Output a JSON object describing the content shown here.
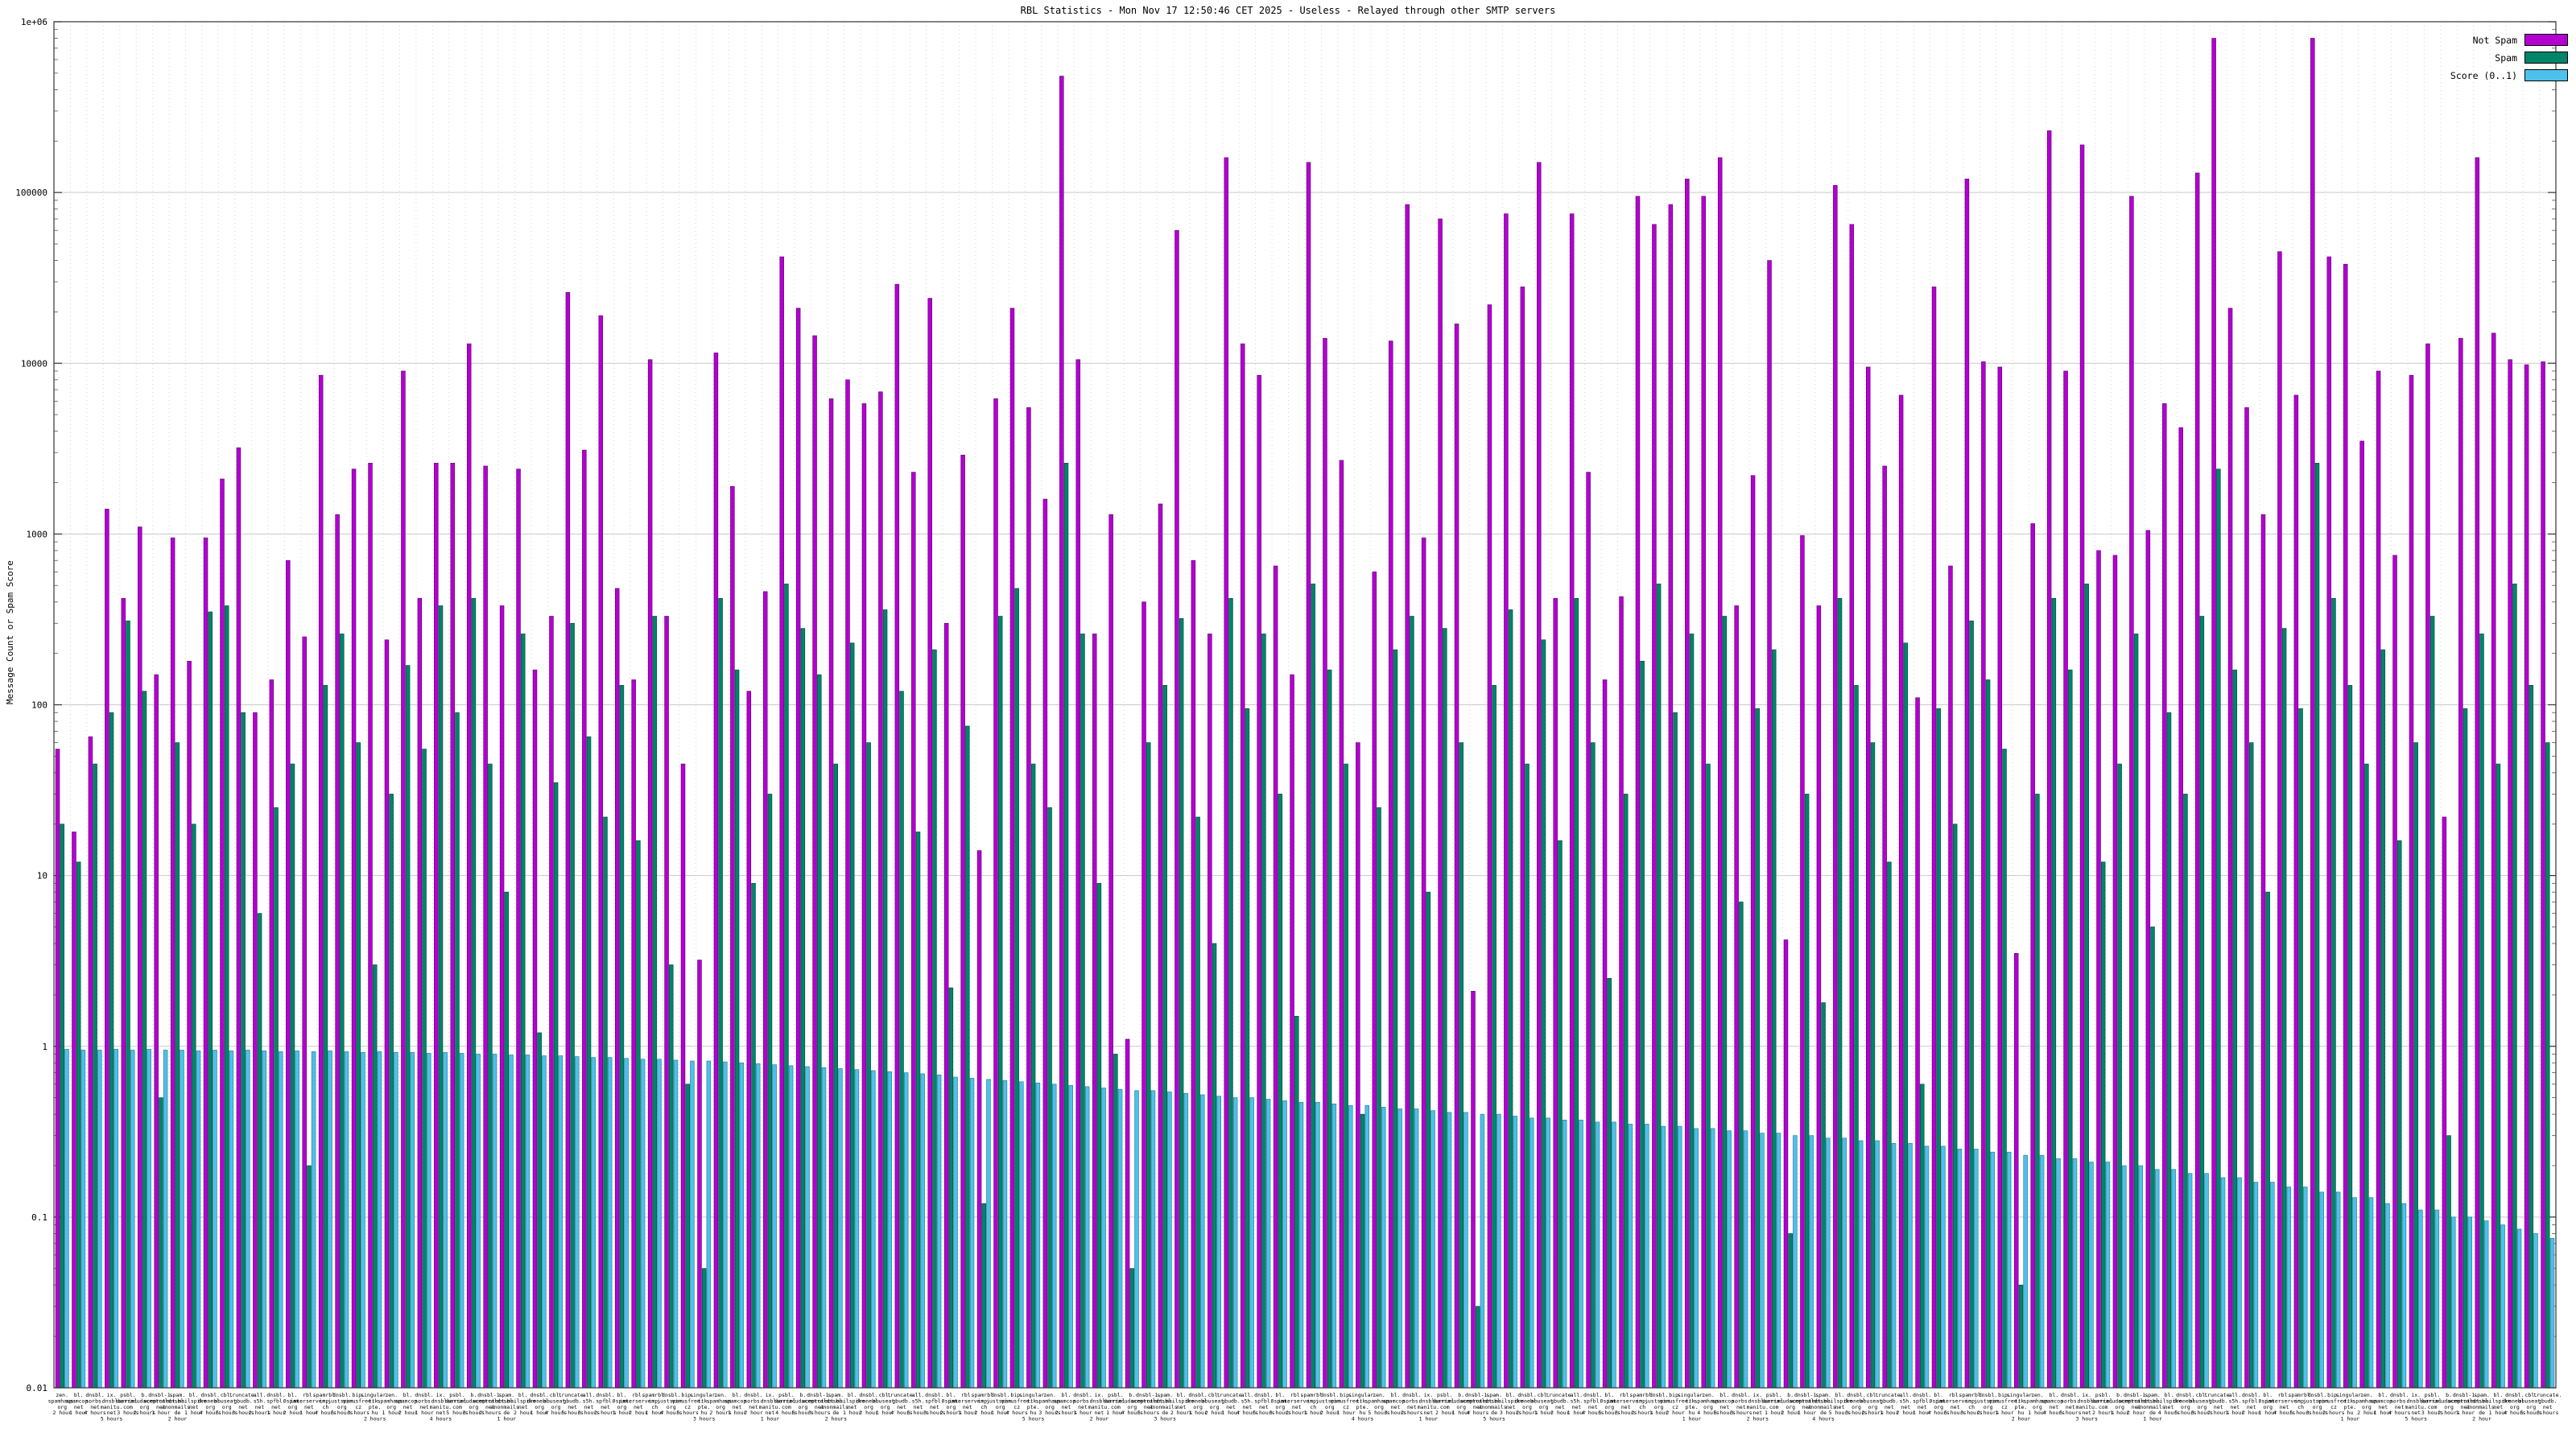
{
  "title": "RBL Statistics - Mon Nov 17 12:50:46 CET 2025 - Useless - Relayed through other SMTP servers",
  "y_axis": {
    "label": "Message Count or Spam Score"
  },
  "legend": {
    "items": [
      {
        "label": "Not Spam",
        "color": "#b300d1"
      },
      {
        "label": "Spam",
        "color": "#00846a"
      },
      {
        "label": "Score (0..1)",
        "color": "#4fc0ea"
      }
    ]
  },
  "chart_data": {
    "type": "bar",
    "title": "RBL Statistics - Mon Nov 17 12:50:46 CET 2025 - Useless - Relayed through other SMTP servers",
    "xlabel": "",
    "ylabel": "Message Count or Spam Score",
    "yscale": "log",
    "ylim": [
      0.01,
      1000000
    ],
    "y_ticks": [
      "0.01",
      "0.1",
      "1",
      "10",
      "100",
      "1000",
      "10000",
      "100000",
      "1e+06"
    ],
    "grid": true,
    "legend_position": "top-right",
    "series_names": [
      "Not Spam",
      "Spam",
      "Score (0..1)"
    ],
    "colors": [
      "#b300d1",
      "#00846a",
      "#4fc0ea"
    ],
    "stroke_colors": [
      "#66007a",
      "#00503f",
      "#2d7fa0"
    ],
    "x_label_cycle": [
      "zen.spamhaus.org",
      "bl.spamcop.net",
      "dnsbl.sorbs.net",
      "ix.dnsbl.manitu.net",
      "psbl.surriel.com",
      "b.barracudacentral.org",
      "dnsbl-1.uceprotect.net",
      "spam.dnsbl.anonmails.de",
      "bl.mailspike.net",
      "dnsbl.dronebl.org",
      "cbl.abuseat.org",
      "truncate.gbudb.net",
      "all.s5h.net",
      "dnsbl.spfbl.net",
      "bl.0spam.org",
      "rbl.interserver.net",
      "spamrbl.imp.ch",
      "dnsbl.justspam.org",
      "bip.virusfree.cz",
      "singular.ttk.pte.hu"
    ],
    "period_cycle": [
      "2 hour",
      "1 hour",
      "4 hours",
      "5 hours",
      "3 hours",
      "2 hours",
      "1 hour"
    ],
    "values": [
      [
        55,
        20,
        0.96
      ],
      [
        18,
        12,
        0.95
      ],
      [
        65,
        45,
        0.95
      ],
      [
        1400,
        90,
        0.96
      ],
      [
        420,
        310,
        0.95
      ],
      [
        1100,
        120,
        0.96
      ],
      [
        150,
        0.5,
        0.95
      ],
      [
        950,
        60,
        0.95
      ],
      [
        180,
        20,
        0.94
      ],
      [
        950,
        350,
        0.95
      ],
      [
        2100,
        380,
        0.94
      ],
      [
        3200,
        90,
        0.95
      ],
      [
        90,
        6,
        0.94
      ],
      [
        140,
        25,
        0.93
      ],
      [
        700,
        45,
        0.94
      ],
      [
        250,
        0.2,
        0.93
      ],
      [
        8500,
        130,
        0.94
      ],
      [
        1300,
        260,
        0.93
      ],
      [
        2400,
        60,
        0.92
      ],
      [
        2600,
        3,
        0.93
      ],
      [
        240,
        30,
        0.92
      ],
      [
        9000,
        170,
        0.92
      ],
      [
        420,
        55,
        0.91
      ],
      [
        2600,
        380,
        0.92
      ],
      [
        2600,
        90,
        0.91
      ],
      [
        13000,
        420,
        0.9
      ],
      [
        2500,
        45,
        0.9
      ],
      [
        380,
        8,
        0.89
      ],
      [
        2400,
        260,
        0.89
      ],
      [
        160,
        1.2,
        0.88
      ],
      [
        330,
        35,
        0.88
      ],
      [
        26000,
        300,
        0.87
      ],
      [
        3100,
        65,
        0.86
      ],
      [
        19000,
        22,
        0.86
      ],
      [
        480,
        130,
        0.85
      ],
      [
        140,
        16,
        0.84
      ],
      [
        10500,
        330,
        0.84
      ],
      [
        330,
        3,
        0.83
      ],
      [
        45,
        0.6,
        0.82
      ],
      [
        3.2,
        0.05,
        0.82
      ],
      [
        11500,
        420,
        0.81
      ],
      [
        1900,
        160,
        0.8
      ],
      [
        120,
        9,
        0.79
      ],
      [
        460,
        30,
        0.78
      ],
      [
        42000,
        510,
        0.77
      ],
      [
        21000,
        280,
        0.76
      ],
      [
        14500,
        150,
        0.75
      ],
      [
        6200,
        45,
        0.74
      ],
      [
        8000,
        230,
        0.73
      ],
      [
        5800,
        60,
        0.72
      ],
      [
        6800,
        360,
        0.71
      ],
      [
        29000,
        120,
        0.7
      ],
      [
        2300,
        18,
        0.69
      ],
      [
        24000,
        210,
        0.68
      ],
      [
        300,
        2.2,
        0.66
      ],
      [
        2900,
        75,
        0.65
      ],
      [
        14,
        0.12,
        0.64
      ],
      [
        6200,
        330,
        0.63
      ],
      [
        21000,
        480,
        0.62
      ],
      [
        5500,
        45,
        0.61
      ],
      [
        1600,
        25,
        0.6
      ],
      [
        480000,
        2600,
        0.59
      ],
      [
        10500,
        260,
        0.58
      ],
      [
        260,
        9,
        0.57
      ],
      [
        1300,
        0.9,
        0.56
      ],
      [
        1.1,
        0.05,
        0.55
      ],
      [
        400,
        60,
        0.55
      ],
      [
        1500,
        130,
        0.54
      ],
      [
        60000,
        320,
        0.53
      ],
      [
        700,
        22,
        0.52
      ],
      [
        260,
        4,
        0.51
      ],
      [
        160000,
        420,
        0.5
      ],
      [
        13000,
        95,
        0.5
      ],
      [
        8500,
        260,
        0.49
      ],
      [
        650,
        30,
        0.48
      ],
      [
        150,
        1.5,
        0.47
      ],
      [
        150000,
        510,
        0.47
      ],
      [
        14000,
        160,
        0.46
      ],
      [
        2700,
        45,
        0.45
      ],
      [
        60,
        0.4,
        0.45
      ],
      [
        600,
        25,
        0.44
      ],
      [
        13500,
        210,
        0.43
      ],
      [
        85000,
        330,
        0.43
      ],
      [
        950,
        8,
        0.42
      ],
      [
        70000,
        280,
        0.41
      ],
      [
        17000,
        60,
        0.41
      ],
      [
        2.1,
        0.03,
        0.4
      ],
      [
        22000,
        130,
        0.4
      ],
      [
        75000,
        360,
        0.39
      ],
      [
        28000,
        45,
        0.38
      ],
      [
        150000,
        240,
        0.38
      ],
      [
        420,
        16,
        0.37
      ],
      [
        75000,
        420,
        0.37
      ],
      [
        2300,
        60,
        0.36
      ],
      [
        140,
        2.5,
        0.36
      ],
      [
        430,
        30,
        0.35
      ],
      [
        95000,
        180,
        0.35
      ],
      [
        65000,
        510,
        0.34
      ],
      [
        85000,
        90,
        0.34
      ],
      [
        120000,
        260,
        0.33
      ],
      [
        95000,
        45,
        0.33
      ],
      [
        160000,
        330,
        0.32
      ],
      [
        380,
        7,
        0.32
      ],
      [
        2200,
        95,
        0.31
      ],
      [
        40000,
        210,
        0.31
      ],
      [
        4.2,
        0.08,
        0.3
      ],
      [
        980,
        30,
        0.3
      ],
      [
        380,
        1.8,
        0.29
      ],
      [
        110000,
        420,
        0.29
      ],
      [
        65000,
        130,
        0.28
      ],
      [
        9500,
        60,
        0.28
      ],
      [
        2500,
        12,
        0.27
      ],
      [
        6500,
        230,
        0.27
      ],
      [
        110,
        0.6,
        0.26
      ],
      [
        28000,
        95,
        0.26
      ],
      [
        650,
        20,
        0.25
      ],
      [
        120000,
        310,
        0.25
      ],
      [
        10200,
        140,
        0.24
      ],
      [
        9500,
        55,
        0.24
      ],
      [
        3.5,
        0.04,
        0.23
      ],
      [
        1150,
        30,
        0.23
      ],
      [
        230000,
        420,
        0.22
      ],
      [
        9000,
        160,
        0.22
      ],
      [
        190000,
        510,
        0.21
      ],
      [
        800,
        12,
        0.21
      ],
      [
        750,
        45,
        0.2
      ],
      [
        95000,
        260,
        0.2
      ],
      [
        1050,
        5,
        0.19
      ],
      [
        5800,
        90,
        0.19
      ],
      [
        4200,
        30,
        0.18
      ],
      [
        130000,
        330,
        0.18
      ],
      [
        800000,
        2400,
        0.17
      ],
      [
        21000,
        160,
        0.17
      ],
      [
        5500,
        60,
        0.16
      ],
      [
        1300,
        8,
        0.16
      ],
      [
        45000,
        280,
        0.15
      ],
      [
        6500,
        95,
        0.15
      ],
      [
        800000,
        2600,
        0.14
      ],
      [
        42000,
        420,
        0.14
      ],
      [
        38000,
        130,
        0.13
      ],
      [
        3500,
        45,
        0.13
      ],
      [
        9000,
        210,
        0.12
      ],
      [
        750,
        16,
        0.12
      ],
      [
        8500,
        60,
        0.11
      ],
      [
        13000,
        330,
        0.11
      ],
      [
        22,
        0.3,
        0.1
      ],
      [
        14000,
        95,
        0.1
      ],
      [
        160000,
        260,
        0.095
      ],
      [
        15000,
        45,
        0.09
      ],
      [
        10500,
        510,
        0.085
      ],
      [
        9800,
        130,
        0.08
      ],
      [
        10200,
        60,
        0.075
      ]
    ]
  }
}
